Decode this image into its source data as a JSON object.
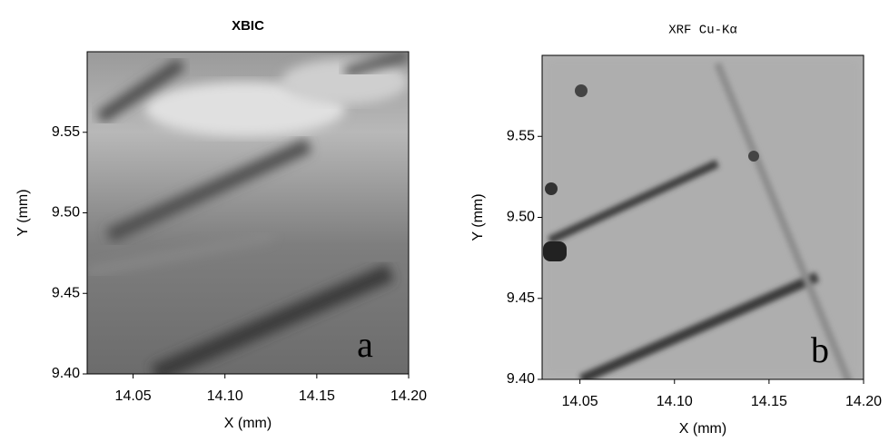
{
  "chart_data": [
    {
      "type": "contour",
      "title": "XBIC",
      "x_label": "X (mm)",
      "y_label": "Y (mm)",
      "annotation": "a",
      "xlim": [
        14.025,
        14.2
      ],
      "xticks": [
        14.05,
        {
          "value": 14.1,
          "label": "14.10"
        },
        14.15,
        {
          "value": 14.2,
          "label": "14.20"
        }
      ],
      "ylim": [
        9.4,
        9.6
      ],
      "yticks": [
        {
          "value": 9.4,
          "label": "9.40"
        },
        9.45,
        {
          "value": 9.5,
          "label": "9.50"
        },
        9.55
      ]
    },
    {
      "type": "contour",
      "title": "XRF Cu-Kα",
      "x_label": "X (mm)",
      "y_label": "Y (mm)",
      "annotation": "b",
      "xlim": [
        14.03,
        14.2
      ],
      "xticks": [
        14.05,
        {
          "value": 14.1,
          "label": "14.10"
        },
        14.15,
        {
          "value": 14.2,
          "label": "14.20"
        }
      ],
      "ylim": [
        9.4,
        9.6
      ],
      "yticks": [
        {
          "value": 9.4,
          "label": "9.40"
        },
        9.45,
        {
          "value": 9.5,
          "label": "9.50"
        },
        9.55
      ]
    }
  ]
}
